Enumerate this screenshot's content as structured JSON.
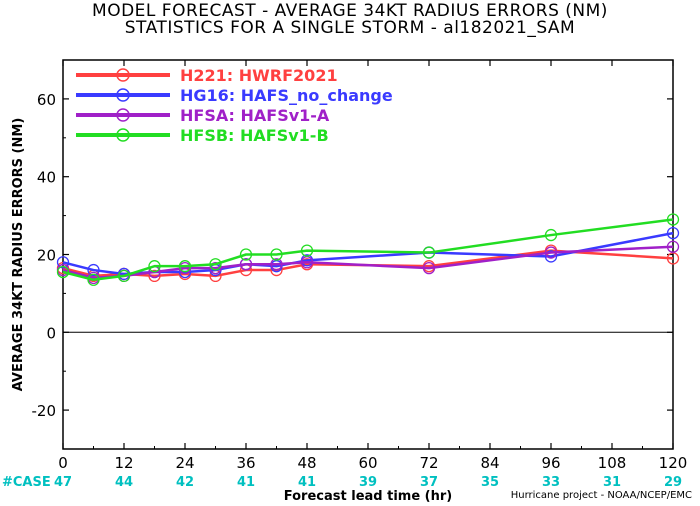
{
  "chart_data": {
    "type": "line",
    "title": "MODEL FORECAST - AVERAGE 34KT RADIUS ERRORS (NM)",
    "subtitle": "STATISTICS FOR A SINGLE STORM - al182021_SAM",
    "xlabel": "Forecast lead time (hr)",
    "ylabel": "AVERAGE 34KT RADIUS ERRORS (NM)",
    "xlim": [
      0,
      120
    ],
    "ylim": [
      -30,
      70
    ],
    "xticks": [
      0,
      12,
      24,
      36,
      48,
      60,
      72,
      84,
      96,
      108,
      120
    ],
    "yticks": [
      -20,
      0,
      20,
      40,
      60
    ],
    "x": [
      0,
      6,
      12,
      18,
      24,
      30,
      36,
      42,
      48,
      72,
      96,
      120
    ],
    "case_label": "#CASE",
    "case_counts": [
      "47",
      "44",
      "42",
      "41",
      "41",
      "39",
      "37",
      "35",
      "33",
      "31",
      "29"
    ],
    "series": [
      {
        "name": "H221",
        "desc": "HWRF2021",
        "color": "#ff4040",
        "values": [
          16.5,
          14.5,
          15.0,
          14.5,
          15.0,
          14.5,
          16.0,
          16.0,
          17.5,
          17.0,
          21.0,
          19.0
        ]
      },
      {
        "name": "HG16",
        "desc": "HAFS_no_change",
        "color": "#3a3aff",
        "values": [
          18.0,
          16.0,
          15.0,
          15.5,
          15.5,
          16.0,
          17.5,
          17.0,
          18.5,
          20.5,
          19.5,
          25.5
        ]
      },
      {
        "name": "HFSA",
        "desc": "HAFSv1-A",
        "color": "#a020c8",
        "values": [
          16.0,
          14.0,
          14.5,
          15.5,
          16.5,
          16.5,
          17.5,
          17.5,
          18.0,
          16.5,
          20.5,
          22.0
        ]
      },
      {
        "name": "HFSB",
        "desc": "HAFSv1-B",
        "color": "#22dd22",
        "values": [
          15.5,
          13.5,
          14.5,
          17.0,
          17.0,
          17.5,
          20.0,
          20.0,
          21.0,
          20.5,
          25.0,
          29.0
        ]
      }
    ],
    "grid": false,
    "legend": "top-left"
  },
  "credit": "Hurricane project - NOAA/NCEP/EMC"
}
